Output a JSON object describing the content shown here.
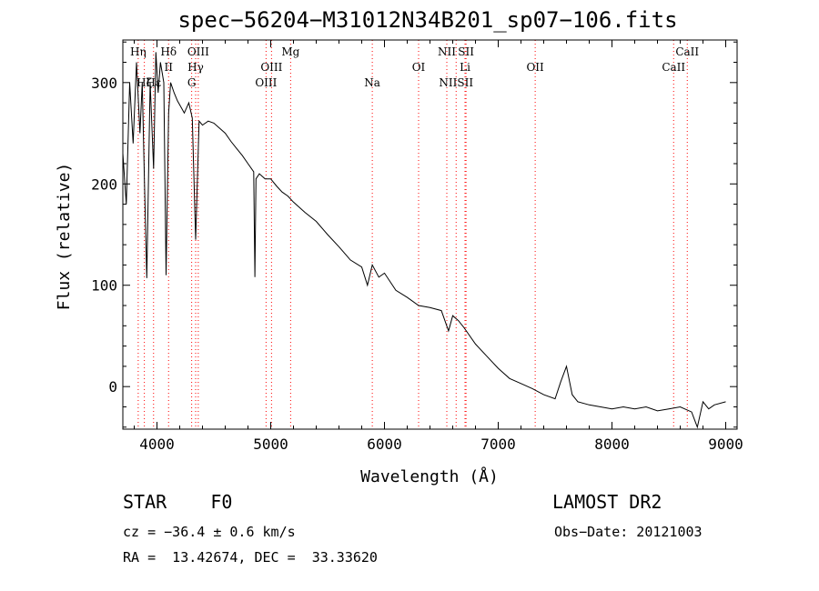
{
  "chart_data": {
    "type": "line",
    "title": "spec−56204−M31012N34B201_sp07−106.fits",
    "xlabel": "Wavelength (Å)",
    "ylabel": "Flux (relative)",
    "xlim": [
      3700,
      9100
    ],
    "ylim": [
      -42,
      342
    ],
    "xticks": [
      4000,
      5000,
      6000,
      7000,
      8000,
      9000
    ],
    "yticks": [
      0,
      100,
      200,
      300
    ],
    "line_color": "#000000",
    "marker_color": "#ff0000",
    "series": [
      {
        "x": [
          3700,
          3730,
          3760,
          3790,
          3820,
          3850,
          3870,
          3890,
          3910,
          3940,
          3970,
          3990,
          4010,
          4030,
          4060,
          4080,
          4102,
          4120,
          4150,
          4180,
          4210,
          4240,
          4280,
          4310,
          4340,
          4370,
          4400,
          4450,
          4500,
          4550,
          4600,
          4650,
          4700,
          4750,
          4800,
          4850,
          4861,
          4870,
          4900,
          4950,
          5000,
          5050,
          5100,
          5150,
          5200,
          5300,
          5400,
          5500,
          5600,
          5700,
          5800,
          5850,
          5893,
          5950,
          6000,
          6100,
          6200,
          6300,
          6400,
          6500,
          6563,
          6600,
          6650,
          6700,
          6800,
          6900,
          7000,
          7100,
          7200,
          7300,
          7400,
          7500,
          7550,
          7600,
          7650,
          7700,
          7800,
          7900,
          8000,
          8100,
          8200,
          8300,
          8400,
          8500,
          8600,
          8700,
          8750,
          8800,
          8850,
          8900,
          9000
        ],
        "y": [
          230,
          180,
          300,
          240,
          320,
          250,
          300,
          200,
          107,
          300,
          215,
          330,
          290,
          320,
          300,
          110,
          270,
          300,
          290,
          282,
          276,
          270,
          280,
          265,
          145,
          262,
          258,
          262,
          260,
          255,
          250,
          242,
          235,
          228,
          220,
          212,
          108,
          205,
          210,
          205,
          205,
          198,
          192,
          188,
          182,
          172,
          163,
          150,
          138,
          125,
          118,
          100,
          120,
          108,
          112,
          95,
          88,
          80,
          78,
          75,
          55,
          70,
          65,
          58,
          42,
          30,
          18,
          8,
          3,
          -2,
          -8,
          -12,
          5,
          20,
          -8,
          -15,
          -18,
          -20,
          -22,
          -20,
          -22,
          -20,
          -24,
          -22,
          -20,
          -25,
          -40,
          -15,
          -22,
          -18,
          -15
        ]
      }
    ],
    "line_markers": [
      {
        "label": "Hη",
        "wavelength": 3835,
        "row": 0
      },
      {
        "label": "Hζ",
        "wavelength": 3889,
        "row": 2
      },
      {
        "label": "Hε",
        "wavelength": 3970,
        "row": 2
      },
      {
        "label": "Hδ",
        "wavelength": 4102,
        "row": 0
      },
      {
        "label": "II",
        "wavelength": 4102,
        "row": 1
      },
      {
        "label": "OIII",
        "wavelength": 4363,
        "row": 0
      },
      {
        "label": "Hγ",
        "wavelength": 4340,
        "row": 1
      },
      {
        "label": "G",
        "wavelength": 4305,
        "row": 2
      },
      {
        "label": "Mg",
        "wavelength": 5175,
        "row": 0
      },
      {
        "label": "OIII",
        "wavelength": 5007,
        "row": 1
      },
      {
        "label": "OIII",
        "wavelength": 4959,
        "row": 2
      },
      {
        "label": "Na",
        "wavelength": 5893,
        "row": 2
      },
      {
        "label": "OI",
        "wavelength": 6300,
        "row": 1
      },
      {
        "label": "NII",
        "wavelength": 6548,
        "row": 0
      },
      {
        "label": "SII",
        "wavelength": 6717,
        "row": 0
      },
      {
        "label": "Li",
        "wavelength": 6708,
        "row": 1
      },
      {
        "label": "NIISII",
        "wavelength": 6630,
        "row": 2
      },
      {
        "label": "OII",
        "wavelength": 7325,
        "row": 1
      },
      {
        "label": "CaII",
        "wavelength": 8662,
        "row": 0
      },
      {
        "label": "CaII",
        "wavelength": 8542,
        "row": 1
      }
    ]
  },
  "info": {
    "class_label": "STAR    F0",
    "survey": "LAMOST DR2",
    "cz": "cz = −36.4 ± 0.6 km/s",
    "obs_date": "Obs−Date: 20121003",
    "coords": "RA =  13.42674, DEC =  33.33620"
  }
}
